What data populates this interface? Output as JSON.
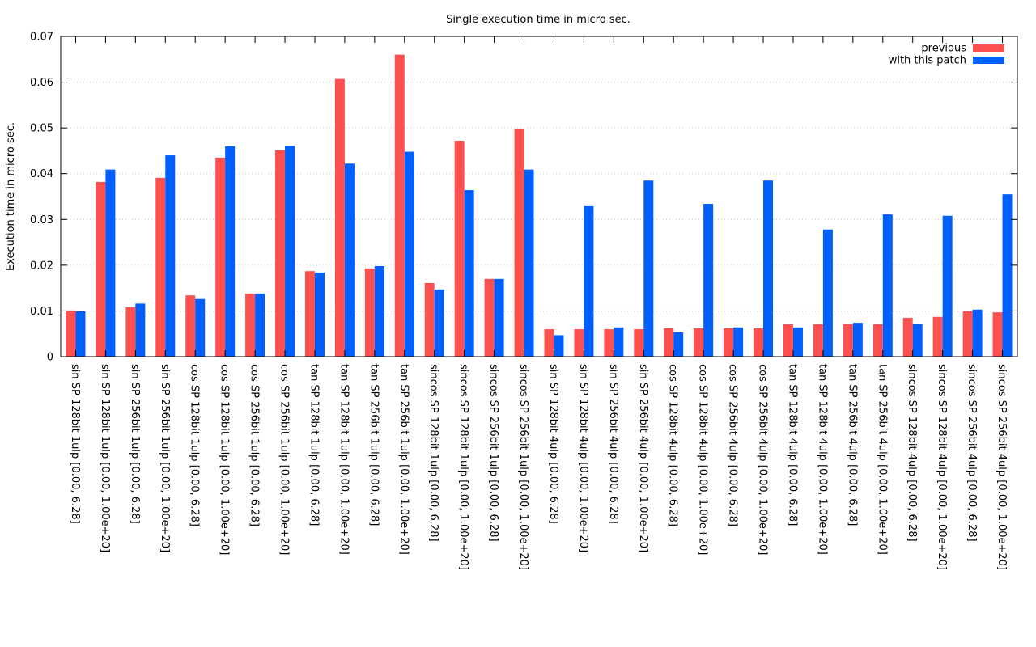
{
  "chart_data": {
    "type": "bar",
    "title": "Single execution time in micro sec.",
    "xlabel": "",
    "ylabel": "Execution time in micro sec.",
    "ylim": [
      0,
      0.07
    ],
    "yticks": [
      "0",
      "0.01",
      "0.02",
      "0.03",
      "0.04",
      "0.05",
      "0.06",
      "0.07"
    ],
    "grid": "horizontal dotted",
    "legend_position": "top-right",
    "categories": [
      "sin SP 128bit  1ulp [0.00, 6.28]",
      "sin SP 128bit  1ulp [0.00, 1.00e+20]",
      "sin SP 256bit  1ulp [0.00, 6.28]",
      "sin SP 256bit  1ulp [0.00, 1.00e+20]",
      "cos SP 128bit  1ulp [0.00, 6.28]",
      "cos SP 128bit  1ulp [0.00, 1.00e+20]",
      "cos SP 256bit  1ulp [0.00, 6.28]",
      "cos SP 256bit  1ulp [0.00, 1.00e+20]",
      "tan SP 128bit  1ulp [0.00, 6.28]",
      "tan SP 128bit  1ulp [0.00, 1.00e+20]",
      "tan SP 256bit  1ulp [0.00, 6.28]",
      "tan SP 256bit  1ulp [0.00, 1.00e+20]",
      "sincos SP 128bit  1ulp [0.00, 6.28]",
      "sincos SP 128bit  1ulp [0.00, 1.00e+20]",
      "sincos SP 256bit  1ulp [0.00, 6.28]",
      "sincos SP 256bit  1ulp [0.00, 1.00e+20]",
      "sin SP 128bit  4ulp [0.00, 6.28]",
      "sin SP 128bit  4ulp [0.00, 1.00e+20]",
      "sin SP 256bit  4ulp [0.00, 6.28]",
      "sin SP 256bit  4ulp [0.00, 1.00e+20]",
      "cos SP 128bit  4ulp [0.00, 6.28]",
      "cos SP 128bit  4ulp [0.00, 1.00e+20]",
      "cos SP 256bit  4ulp [0.00, 6.28]",
      "cos SP 256bit  4ulp [0.00, 1.00e+20]",
      "tan SP 128bit  4ulp [0.00, 6.28]",
      "tan SP 128bit  4ulp [0.00, 1.00e+20]",
      "tan SP 256bit  4ulp [0.00, 6.28]",
      "tan SP 256bit  4ulp [0.00, 1.00e+20]",
      "sincos SP 128bit  4ulp [0.00, 6.28]",
      "sincos SP 128bit  4ulp [0.00, 1.00e+20]",
      "sincos SP 256bit  4ulp [0.00, 6.28]",
      "sincos SP 256bit  4ulp [0.00, 1.00e+20]"
    ],
    "series": [
      {
        "name": "previous",
        "color": "#ff5050",
        "values": [
          0.0101,
          0.0382,
          0.0108,
          0.0391,
          0.0134,
          0.0435,
          0.0138,
          0.0451,
          0.0187,
          0.0607,
          0.0193,
          0.066,
          0.0161,
          0.0472,
          0.017,
          0.0497,
          0.006,
          0.006,
          0.006,
          0.006,
          0.0062,
          0.0062,
          0.0062,
          0.0062,
          0.0071,
          0.0071,
          0.0071,
          0.0071,
          0.0085,
          0.0087,
          0.0099,
          0.0097
        ]
      },
      {
        "name": "with this patch",
        "color": "#0060ff",
        "values": [
          0.0099,
          0.0409,
          0.0116,
          0.044,
          0.0126,
          0.046,
          0.0138,
          0.0461,
          0.0184,
          0.0422,
          0.0198,
          0.0448,
          0.0147,
          0.0364,
          0.017,
          0.0409,
          0.0047,
          0.0329,
          0.0064,
          0.0385,
          0.0053,
          0.0334,
          0.0064,
          0.0385,
          0.0064,
          0.0278,
          0.0074,
          0.0311,
          0.0072,
          0.0308,
          0.0103,
          0.0355
        ]
      }
    ]
  }
}
